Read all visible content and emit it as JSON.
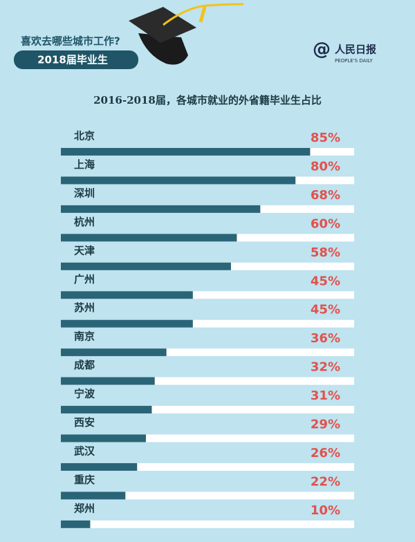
{
  "header": {
    "question": "喜欢去哪些城市工作?",
    "badge": "2018届毕业生"
  },
  "logo": {
    "name": "人民日报",
    "english": "PEOPLE'S DAILY"
  },
  "chart_data": {
    "type": "bar",
    "orientation": "horizontal",
    "title": "2016-2018届，各城市就业的外省籍毕业生占比",
    "categories": [
      "北京",
      "上海",
      "深圳",
      "杭州",
      "天津",
      "广州",
      "苏州",
      "南京",
      "成都",
      "宁波",
      "西安",
      "武汉",
      "重庆",
      "郑州"
    ],
    "values": [
      85,
      80,
      68,
      60,
      58,
      45,
      45,
      36,
      32,
      31,
      29,
      26,
      22,
      10
    ],
    "value_labels": [
      "85%",
      "80%",
      "68%",
      "60%",
      "58%",
      "45%",
      "45%",
      "36%",
      "32%",
      "31%",
      "29%",
      "26%",
      "22%",
      "10%"
    ],
    "xlim": [
      0,
      100
    ],
    "color": "#2a6477",
    "track_color": "#ffffff",
    "label_color": "#e2514c"
  }
}
